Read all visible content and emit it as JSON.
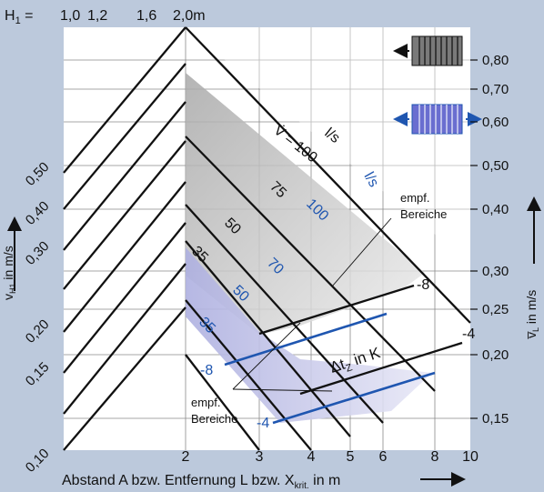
{
  "chart_data": {
    "type": "line",
    "title": "",
    "top_label": "H₁ = 1,0  1,2    1,6   2,0m",
    "top_values": [
      "1,0",
      "1,2",
      "1,6",
      "2,0m"
    ],
    "xlabel": "Abstand A bzw. Entfernung L bzw. X_krit. in m",
    "xlabel_main": "Abstand A bzw. Entfernung L bzw. X",
    "xlabel_sub": "krit.",
    "xlabel_end": " in m",
    "xscale": "log",
    "xlim": [
      1,
      10
    ],
    "xticks": [
      "2",
      "3",
      "4",
      "5",
      "6",
      "8",
      "10"
    ],
    "ylabel_left": "v_H1 in m/s",
    "ylabel_left_main": "v",
    "ylabel_left_sub": "H1",
    "ylabel_left_end": " in m/s",
    "left_ticks": [
      "0,10",
      "0,15",
      "0,20",
      "0,30",
      "0,40",
      "0,50"
    ],
    "ylabel_right": "v̅_L in m/s",
    "ylabel_right_main": "v̅",
    "ylabel_right_sub": "L",
    "ylabel_right_end": " in m/s",
    "right_ticks": [
      "0,15",
      "0,20",
      "0,25",
      "0,30",
      "0,40",
      "0,50",
      "0,60",
      "0,70",
      "0,80"
    ],
    "flow_label": "V̇ = 100",
    "flow_unit": "l/s",
    "series_black": [
      "75",
      "50",
      "35"
    ],
    "series_blue": [
      "100",
      "70",
      "50",
      "35"
    ],
    "dt_label": "Δt",
    "dt_sub": "Z",
    "dt_end": " in K",
    "dt_values_black": [
      "-8",
      "-4"
    ],
    "dt_values_blue": [
      "-8",
      "-4"
    ],
    "annotation": [
      "empf.",
      "Bereiche"
    ],
    "colors": {
      "background": "#bcc9dc",
      "plot_area": "#ffffff",
      "grid": "#7a7a7a",
      "black_band": "#cdcdcd",
      "blue_band": "#b8b8e2",
      "blue_series": "#1f56b0",
      "black_series": "#111111"
    }
  }
}
